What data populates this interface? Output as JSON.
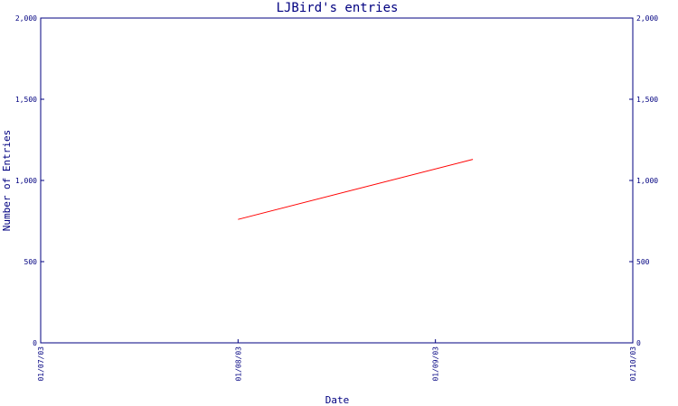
{
  "chart_data": {
    "type": "line",
    "title": "LJBird's entries",
    "xlabel": "Date",
    "ylabel": "Number of Entries",
    "x_ticks": [
      "01/07/03",
      "01/08/03",
      "01/09/03",
      "01/10/03"
    ],
    "y_ticks": [
      "0",
      "500",
      "1,000",
      "1,500",
      "2,000"
    ],
    "y_tick_values": [
      0,
      500,
      1000,
      1500,
      2000
    ],
    "ylim": [
      0,
      2000
    ],
    "xlim": [
      "01/07/03",
      "01/10/03"
    ],
    "series": [
      {
        "x": [
          "01/08/03",
          "01/09/03"
        ],
        "x_index": [
          1.0,
          2.19
        ],
        "y": [
          760,
          1130
        ]
      }
    ],
    "grid": false,
    "colors": {
      "axis": "#000080",
      "title": "#000080",
      "line": "#ff0000"
    }
  }
}
